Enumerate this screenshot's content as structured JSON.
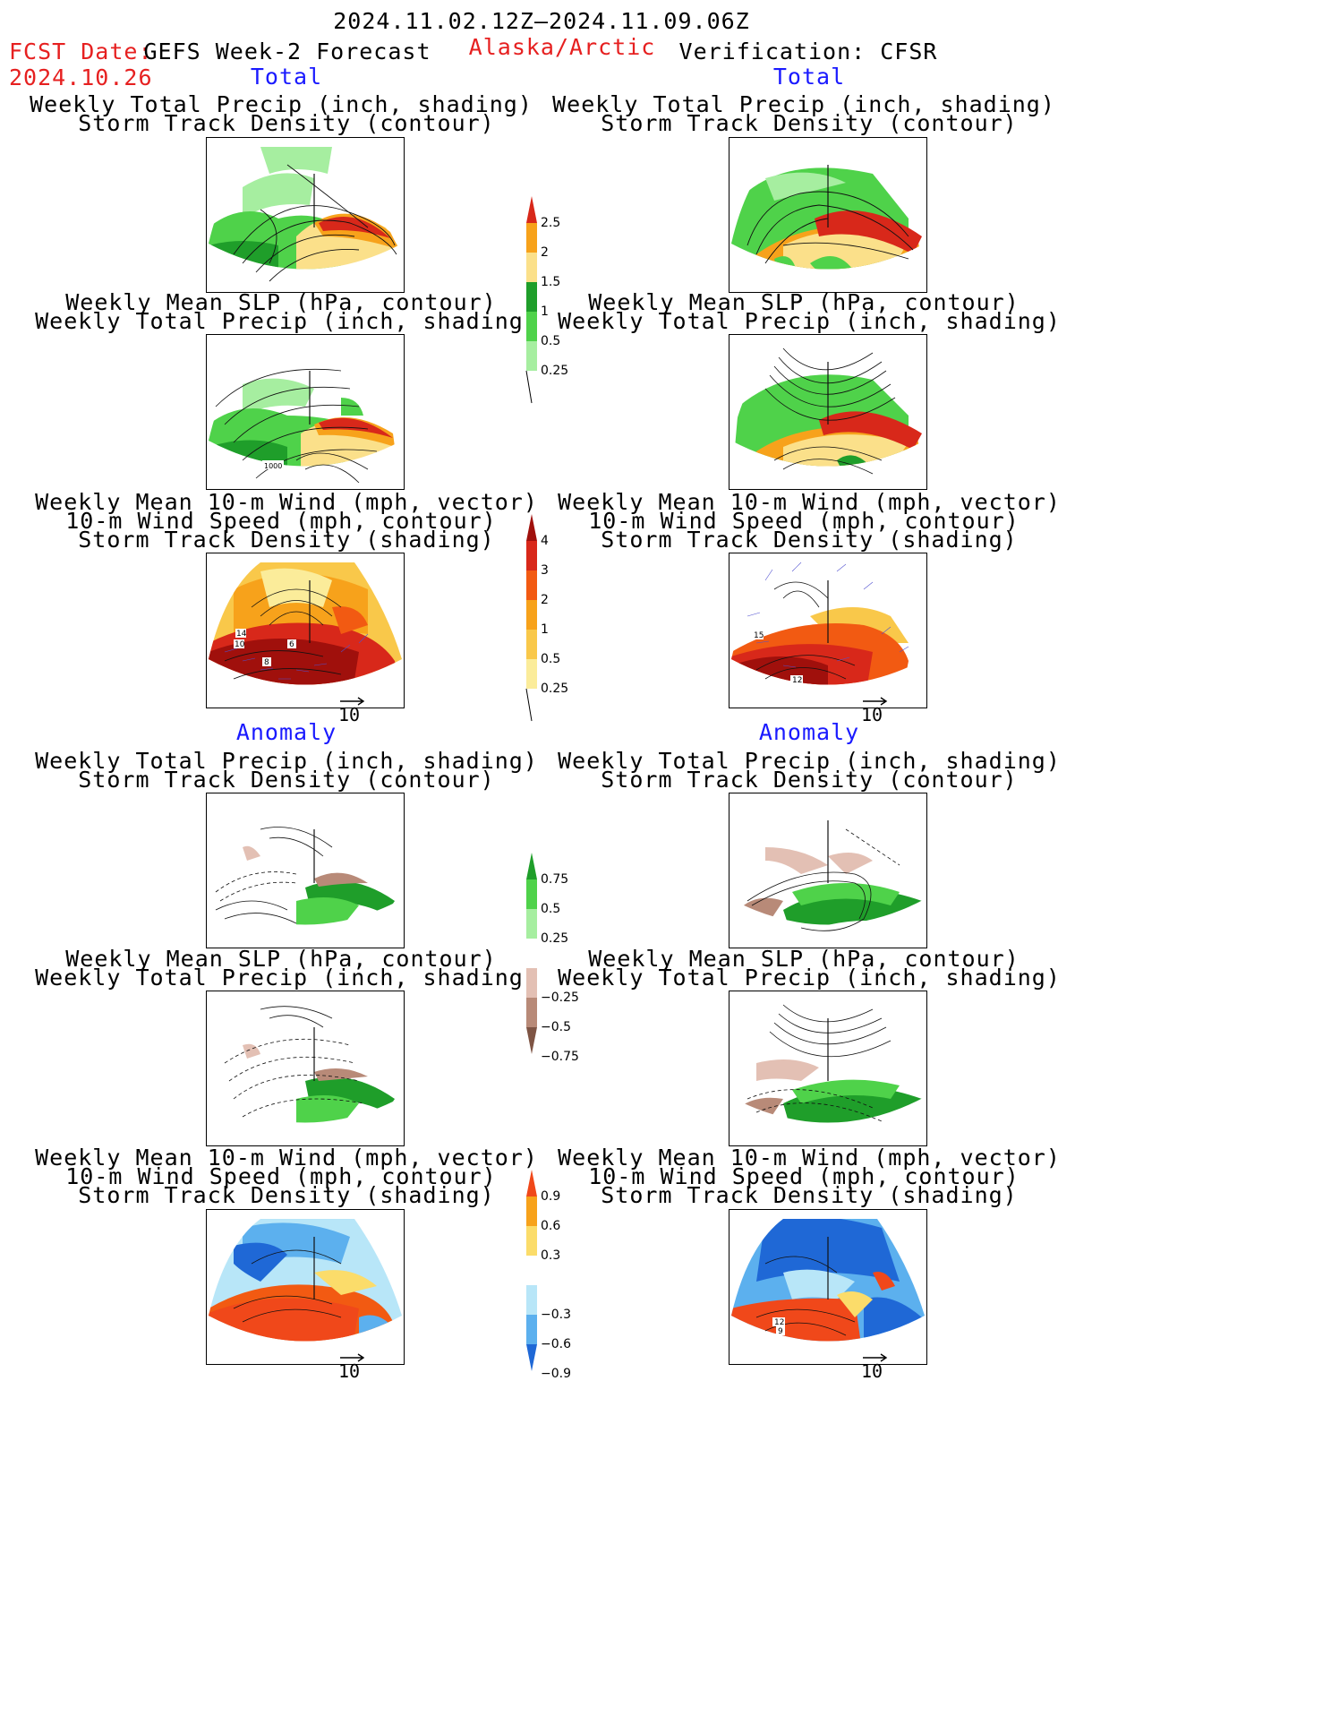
{
  "header": {
    "period": "2024.11.02.12Z–2024.11.09.06Z",
    "fcst_label": "FCST Date:",
    "fcst_date": "2024.10.26",
    "model": "GEFS Week-2 Forecast",
    "region": "Alaska/Arctic",
    "verification": "Verification: CFSR"
  },
  "sections": {
    "total": "Total",
    "anomaly": "Anomaly"
  },
  "panel_titles": {
    "precip_track": [
      "Weekly Total Precip (inch, shading)",
      "Storm Track Density (contour)"
    ],
    "slp_precip": [
      "Weekly Mean SLP (hPa, contour)",
      "Weekly Total Precip (inch, shading)"
    ],
    "wind_track": [
      "Weekly Mean 10-m Wind (mph, vector)",
      "10-m Wind Speed (mph, contour)",
      "Storm Track Density (shading)"
    ]
  },
  "vector_ref": "10",
  "map_labels": {
    "slp_1000": "1000",
    "left_wind": [
      "14",
      "10",
      "6",
      "8"
    ],
    "right_wind": [
      "15",
      "12"
    ],
    "right_anom_wind": [
      "12",
      "9"
    ]
  },
  "colorbars": {
    "precip_total": {
      "labels": [
        "2.5",
        "2",
        "1.5",
        "1",
        "0.5",
        "0.25"
      ],
      "colors": [
        "#d8281a",
        "#f7a21b",
        "#fbe08a",
        "#1f9e2a",
        "#4fd24a",
        "#a6eea0"
      ]
    },
    "track_total": {
      "labels": [
        "4",
        "3",
        "2",
        "1",
        "0.5",
        "0.25"
      ],
      "colors": [
        "#a0100c",
        "#d8281a",
        "#f25a12",
        "#f7a21b",
        "#f9c84a",
        "#fbec9a"
      ]
    },
    "precip_anom": {
      "labels": [
        "0.75",
        "0.5",
        "0.25",
        "−0.25",
        "−0.5",
        "−0.75"
      ],
      "colors": [
        "#1f9e2a",
        "#4fd24a",
        "#a6eea0",
        "#ffffff",
        "#e3c0b4",
        "#b88a78",
        "#7e5444"
      ]
    },
    "track_anom": {
      "labels": [
        "0.9",
        "0.6",
        "0.3",
        "−0.3",
        "−0.6",
        "−0.9"
      ],
      "colors": [
        "#f0481a",
        "#f7a21b",
        "#fbdc6a",
        "#ffffff",
        "#b8e6f8",
        "#5cb0ee",
        "#1f68d6"
      ]
    }
  }
}
